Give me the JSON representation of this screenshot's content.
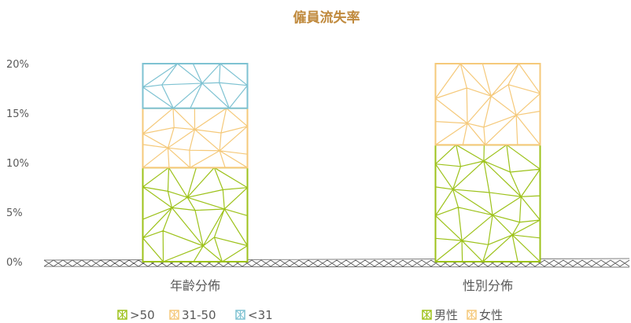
{
  "chart_data": {
    "type": "bar",
    "title": "僱員流失率",
    "categories": [
      "年齡分佈",
      "性別分佈"
    ],
    "ylim": [
      0,
      20
    ],
    "y_ticks": [
      "0%",
      "5%",
      "10%",
      "15%",
      "20%"
    ],
    "grid": false,
    "stacked": true,
    "series": [
      {
        "name": ">50",
        "category": "年齡分佈",
        "value": 9.5,
        "color": "#9DC21A"
      },
      {
        "name": "31-50",
        "category": "年齡分佈",
        "value": 6.0,
        "color": "#F5C97A"
      },
      {
        "name": "<31",
        "category": "年齡分佈",
        "value": 4.5,
        "color": "#7EC2D2"
      },
      {
        "name": "男性",
        "category": "性別分佈",
        "value": 11.8,
        "color": "#9DC21A"
      },
      {
        "name": "女性",
        "category": "性別分佈",
        "value": 8.2,
        "color": "#F5C97A"
      }
    ],
    "legend": [
      {
        "group": "年齡分佈",
        "items": [
          ">50",
          "31-50",
          "<31"
        ]
      },
      {
        "group": "性別分佈",
        "items": [
          "男性",
          "女性"
        ]
      }
    ]
  }
}
